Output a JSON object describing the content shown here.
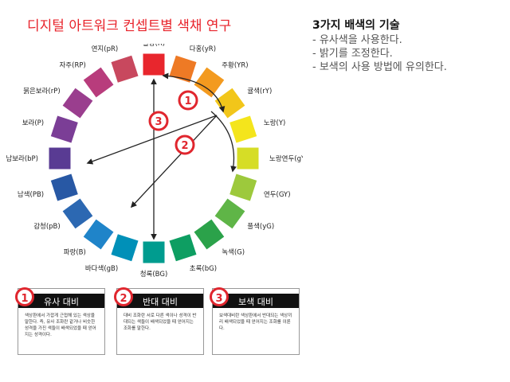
{
  "title": "디지털 아트워크 컨셉트별 색채 연구",
  "side": {
    "heading": "3가지 배색의 기술",
    "items": [
      "- 유사색을 사용한다.",
      "- 밝기를 조정한다.",
      "- 보색의 사용 방법에 유의한다."
    ]
  },
  "wheel": {
    "labels": [
      "빨강(R)",
      "다홍(yR)",
      "주황(YR)",
      "귤색(rY)",
      "노랑(Y)",
      "노랑연두(gY)",
      "연두(GY)",
      "풀색(yG)",
      "녹색(G)",
      "초록(bG)",
      "청록(BG)",
      "바다색(gB)",
      "파랑(B)",
      "감청(pB)",
      "남색(PB)",
      "남보라(bP)",
      "보라(P)",
      "붉은보라(rP)",
      "자주(RP)",
      "연지(pR)"
    ],
    "colors": [
      "#e8262d",
      "#ee7a25",
      "#f39a1f",
      "#f2c61a",
      "#f4e51c",
      "#d6dd26",
      "#9dc93c",
      "#5fb547",
      "#2ba24a",
      "#0e9e62",
      "#009c8f",
      "#0090b8",
      "#1f84c9",
      "#2c68b2",
      "#2858a4",
      "#593b93",
      "#7b3e96",
      "#9a3e8e",
      "#b83c7c",
      "#c8485e"
    ],
    "markers": [
      "1",
      "2",
      "3"
    ]
  },
  "panels": [
    {
      "num": "1",
      "label": "유사 대비",
      "desc": "색상환에서 가깝게 근접해 있는 색상을 말한다. 즉, 유사 조화란 같거나 비슷한 성격을 가진 색들이 배색되었을 때 얻어지는 성격이다."
    },
    {
      "num": "2",
      "label": "반대 대비",
      "desc": "대비 조화란 서로 다른 색이나 성격이 반대되는 색들이 배색되었을 때 얻어지는 조화를 말한다."
    },
    {
      "num": "3",
      "label": "보색 대비",
      "desc": "보색대비란 색상환에서 반대되는 색상끼리 배색되었을 때 얻어지는 조화를 이룬다."
    }
  ]
}
